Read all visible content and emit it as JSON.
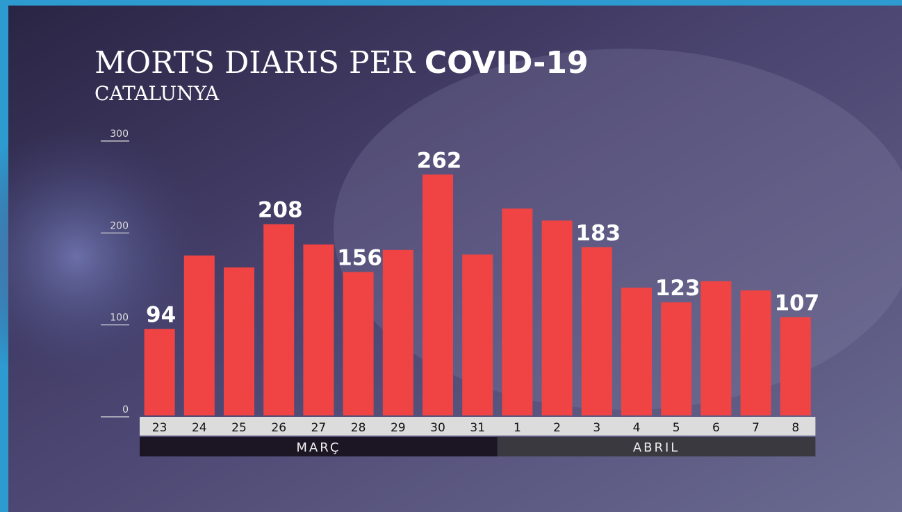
{
  "chart_data": {
    "type": "bar",
    "title": "MORTS DIARIS PER",
    "title_emphasis": "COVID-19",
    "subtitle": "CATALUNYA",
    "groups": [
      {
        "label": "MARÇ",
        "categories": [
          "23",
          "24",
          "25",
          "26",
          "27",
          "28",
          "29",
          "30",
          "31"
        ]
      },
      {
        "label": "ABRIL",
        "categories": [
          "1",
          "2",
          "3",
          "4",
          "5",
          "6",
          "7",
          "8"
        ]
      }
    ],
    "values": [
      94,
      174,
      161,
      208,
      186,
      156,
      180,
      262,
      175,
      225,
      212,
      183,
      139,
      123,
      146,
      136,
      107
    ],
    "value_labels": [
      "94",
      null,
      null,
      "208",
      null,
      "156",
      null,
      "262",
      null,
      null,
      null,
      "183",
      null,
      "123",
      null,
      null,
      "107"
    ],
    "color": "#f04444",
    "ylim": [
      0,
      300
    ],
    "yticks": [
      0,
      100,
      200,
      300
    ]
  }
}
